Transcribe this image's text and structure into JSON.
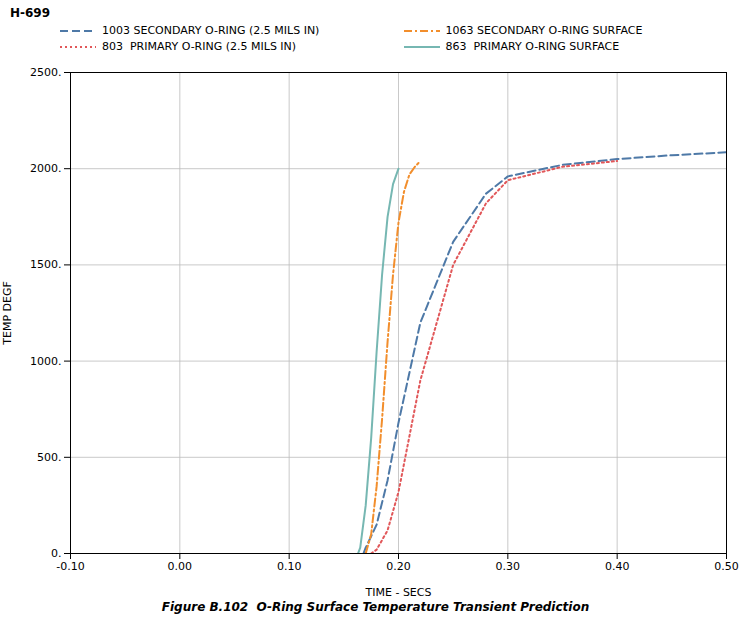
{
  "chart_data": {
    "type": "line",
    "title": "Figure B.102  O-Ring Surface Temperature Transient Prediction",
    "annotations": [
      "H-699"
    ],
    "xlabel": "TIME - SECS",
    "ylabel": "TEMP DEGF",
    "xlim": [
      -0.1,
      0.5
    ],
    "ylim": [
      0,
      2500
    ],
    "xticks": [
      {
        "value": -0.1,
        "label": "-0.10"
      },
      {
        "value": 0.0,
        "label": "0.00"
      },
      {
        "value": 0.1,
        "label": "0.10"
      },
      {
        "value": 0.2,
        "label": "0.20"
      },
      {
        "value": 0.3,
        "label": "0.30"
      },
      {
        "value": 0.4,
        "label": "0.40"
      },
      {
        "value": 0.5,
        "label": "0.50"
      }
    ],
    "yticks": [
      {
        "value": 0,
        "label": "0."
      },
      {
        "value": 500,
        "label": "500."
      },
      {
        "value": 1000,
        "label": "1000."
      },
      {
        "value": 1500,
        "label": "1500."
      },
      {
        "value": 2000,
        "label": "2000."
      },
      {
        "value": 2500,
        "label": "2500."
      }
    ],
    "grid": true,
    "legend": "upper left",
    "series": [
      {
        "name": "1003 SECONDARY O-RING (2.5 MILS IN)",
        "line_style": "dashed",
        "x": [
          0.168,
          0.17,
          0.18,
          0.19,
          0.2,
          0.22,
          0.25,
          0.28,
          0.3,
          0.35,
          0.4,
          0.45,
          0.5
        ],
        "values": [
          0,
          30,
          150,
          380,
          680,
          1200,
          1620,
          1870,
          1960,
          2020,
          2050,
          2070,
          2085
        ]
      },
      {
        "name": "1063 SECONDARY O-RING SURFACE",
        "line_style": "dashdot",
        "x": [
          0.17,
          0.175,
          0.18,
          0.185,
          0.19,
          0.195,
          0.2,
          0.205,
          0.21,
          0.215,
          0.22
        ],
        "values": [
          0,
          100,
          350,
          700,
          1100,
          1450,
          1720,
          1880,
          1970,
          2010,
          2040
        ]
      },
      {
        "name": "803  PRIMARY O-RING (2.5 MILS IN)",
        "line_style": "dotted",
        "x": [
          0.175,
          0.18,
          0.19,
          0.2,
          0.22,
          0.25,
          0.28,
          0.3,
          0.35,
          0.4
        ],
        "values": [
          0,
          20,
          120,
          320,
          900,
          1500,
          1820,
          1940,
          2010,
          2040
        ]
      },
      {
        "name": "863  PRIMARY O-RING SURFACE",
        "line_style": "solid",
        "x": [
          0.163,
          0.165,
          0.17,
          0.175,
          0.18,
          0.185,
          0.19,
          0.195,
          0.2
        ],
        "values": [
          0,
          30,
          250,
          600,
          1050,
          1450,
          1750,
          1920,
          2000
        ]
      }
    ]
  }
}
